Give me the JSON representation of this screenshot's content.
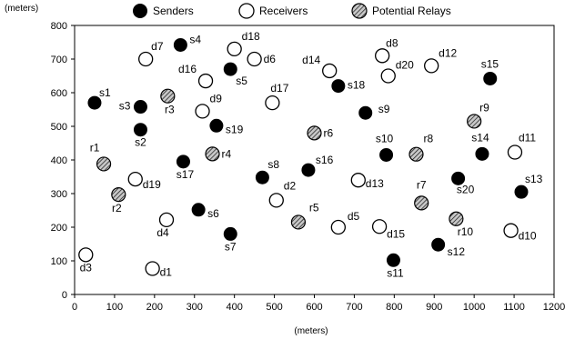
{
  "chart_data": {
    "type": "scatter",
    "title": "",
    "xlabel": "(meters)",
    "ylabel": "(meters)",
    "xlim": [
      0,
      1200
    ],
    "ylim": [
      0,
      800
    ],
    "xticks": [
      0,
      100,
      200,
      300,
      400,
      500,
      600,
      700,
      800,
      900,
      1000,
      1100,
      1200
    ],
    "yticks": [
      0,
      100,
      200,
      300,
      400,
      500,
      600,
      700,
      800
    ],
    "grid": false,
    "legend_position": "top",
    "series": [
      {
        "name": "Senders",
        "marker": "filled-circle",
        "color": "#000000",
        "points": [
          {
            "label": "s1",
            "x": 50,
            "y": 570
          },
          {
            "label": "s2",
            "x": 165,
            "y": 490
          },
          {
            "label": "s3",
            "x": 165,
            "y": 558
          },
          {
            "label": "s4",
            "x": 265,
            "y": 742
          },
          {
            "label": "s5",
            "x": 390,
            "y": 670
          },
          {
            "label": "s6",
            "x": 310,
            "y": 252
          },
          {
            "label": "s7",
            "x": 390,
            "y": 180
          },
          {
            "label": "s8",
            "x": 470,
            "y": 348
          },
          {
            "label": "s9",
            "x": 728,
            "y": 540
          },
          {
            "label": "s10",
            "x": 780,
            "y": 415
          },
          {
            "label": "s11",
            "x": 798,
            "y": 102
          },
          {
            "label": "s12",
            "x": 910,
            "y": 148
          },
          {
            "label": "s13",
            "x": 1118,
            "y": 305
          },
          {
            "label": "s14",
            "x": 1020,
            "y": 418
          },
          {
            "label": "s15",
            "x": 1040,
            "y": 642
          },
          {
            "label": "s16",
            "x": 585,
            "y": 370
          },
          {
            "label": "s17",
            "x": 272,
            "y": 395
          },
          {
            "label": "s18",
            "x": 660,
            "y": 620
          },
          {
            "label": "s19",
            "x": 355,
            "y": 502
          },
          {
            "label": "s20",
            "x": 960,
            "y": 345
          }
        ]
      },
      {
        "name": "Receivers",
        "marker": "open-circle",
        "color": "#000000",
        "points": [
          {
            "label": "d1",
            "x": 195,
            "y": 77
          },
          {
            "label": "d2",
            "x": 505,
            "y": 280
          },
          {
            "label": "d3",
            "x": 28,
            "y": 118
          },
          {
            "label": "d4",
            "x": 230,
            "y": 222
          },
          {
            "label": "d5",
            "x": 660,
            "y": 200
          },
          {
            "label": "d6",
            "x": 450,
            "y": 700
          },
          {
            "label": "d7",
            "x": 178,
            "y": 700
          },
          {
            "label": "d8",
            "x": 770,
            "y": 710
          },
          {
            "label": "d9",
            "x": 320,
            "y": 545
          },
          {
            "label": "d10",
            "x": 1092,
            "y": 190
          },
          {
            "label": "d11",
            "x": 1102,
            "y": 423
          },
          {
            "label": "d12",
            "x": 893,
            "y": 680
          },
          {
            "label": "d13",
            "x": 710,
            "y": 340
          },
          {
            "label": "d14",
            "x": 638,
            "y": 665
          },
          {
            "label": "d15",
            "x": 763,
            "y": 202
          },
          {
            "label": "d16",
            "x": 328,
            "y": 635
          },
          {
            "label": "d17",
            "x": 495,
            "y": 570
          },
          {
            "label": "d18",
            "x": 400,
            "y": 730
          },
          {
            "label": "d19",
            "x": 152,
            "y": 343
          },
          {
            "label": "d20",
            "x": 785,
            "y": 650
          }
        ]
      },
      {
        "name": "Potential Relays",
        "marker": "hatched-circle",
        "color": "#000000",
        "points": [
          {
            "label": "r1",
            "x": 73,
            "y": 388
          },
          {
            "label": "r2",
            "x": 110,
            "y": 297
          },
          {
            "label": "r3",
            "x": 233,
            "y": 590
          },
          {
            "label": "r4",
            "x": 345,
            "y": 418
          },
          {
            "label": "r5",
            "x": 560,
            "y": 215
          },
          {
            "label": "r6",
            "x": 600,
            "y": 480
          },
          {
            "label": "r7",
            "x": 868,
            "y": 272
          },
          {
            "label": "r8",
            "x": 855,
            "y": 417
          },
          {
            "label": "r9",
            "x": 1000,
            "y": 515
          },
          {
            "label": "r10",
            "x": 955,
            "y": 225
          }
        ]
      }
    ]
  }
}
